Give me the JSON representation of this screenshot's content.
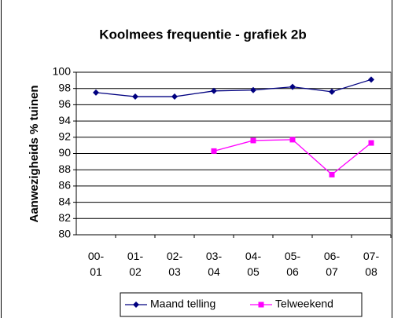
{
  "chart_data": {
    "type": "line",
    "title": "Koolmees frequentie - grafiek 2b",
    "y_label": "Aanwezigheids % tuinen",
    "categories": [
      "00-01",
      "01-02",
      "02-03",
      "03-04",
      "04-05",
      "05-06",
      "06-07",
      "07-08"
    ],
    "series": [
      {
        "name": "Maand telling",
        "color": "#000080",
        "values": [
          97.5,
          97.0,
          97.0,
          97.7,
          97.8,
          98.2,
          97.6,
          99.1
        ]
      },
      {
        "name": "Telweekend",
        "color": "#ff00ff",
        "values": [
          null,
          null,
          null,
          90.3,
          91.6,
          91.7,
          87.4,
          91.3
        ]
      }
    ],
    "ylim": [
      80,
      100
    ],
    "yticks": [
      80,
      82,
      84,
      86,
      88,
      90,
      92,
      94,
      96,
      98,
      100
    ],
    "grid": true,
    "legend": "bottom"
  }
}
